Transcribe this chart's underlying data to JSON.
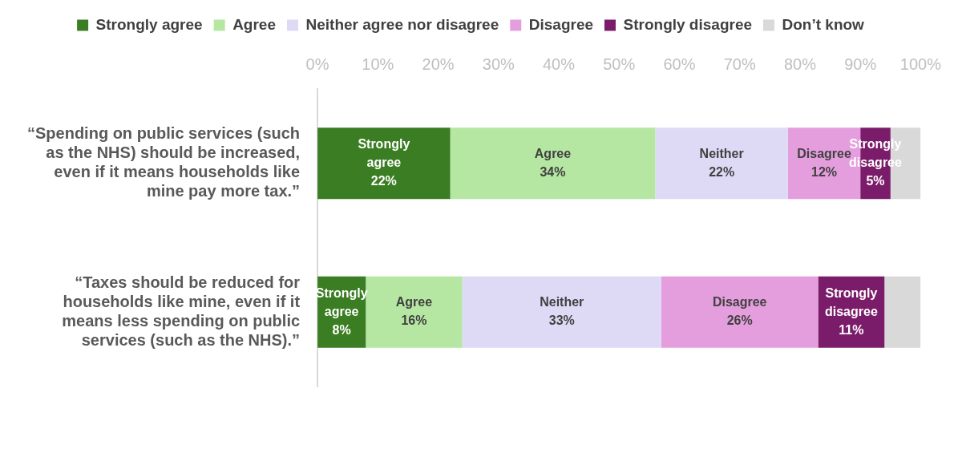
{
  "chart_data": {
    "type": "bar",
    "orientation": "horizontal",
    "stacked": true,
    "legend": "top",
    "categories": [
      "“Spending on public services (such as the NHS) should be increased, even if it means households like mine pay more tax.”",
      "“Taxes should be reduced for households like mine, even if it means less spending on public services (such as the NHS).”"
    ],
    "series": [
      {
        "name": "Strongly agree",
        "color": "#3a7d22",
        "values": [
          22,
          8
        ],
        "value_labels": [
          "Strongly agree 22%",
          "Strongly agree 8%"
        ]
      },
      {
        "name": "Agree",
        "color": "#b5e6a2",
        "values": [
          34,
          16
        ],
        "value_labels": [
          "Agree 34%",
          "Agree 16%"
        ]
      },
      {
        "name": "Neither agree nor disagree",
        "color": "#dedaf6",
        "values": [
          22,
          33
        ],
        "value_labels": [
          "Neither 22%",
          "Neither 33%"
        ]
      },
      {
        "name": "Disagree",
        "color": "#e59edd",
        "values": [
          12,
          26
        ],
        "value_labels": [
          "Disagree 12%",
          "Disagree 26%"
        ]
      },
      {
        "name": "Strongly disagree",
        "color": "#7b1c6a",
        "values": [
          5,
          11
        ],
        "value_labels": [
          "Strongly disagree 5%",
          "Strongly disagree 11%"
        ]
      },
      {
        "name": "Don’t know",
        "color": "#d9d9d9",
        "values": [
          5,
          6
        ],
        "value_labels": [
          null,
          null
        ]
      }
    ],
    "xlim": [
      0,
      100
    ],
    "xticks": [
      {
        "value": 0,
        "label": "0%"
      },
      {
        "value": 10,
        "label": "10%"
      },
      {
        "value": 20,
        "label": "20%"
      },
      {
        "value": 30,
        "label": "30%"
      },
      {
        "value": 40,
        "label": "40%"
      },
      {
        "value": 50,
        "label": "50%"
      },
      {
        "value": 60,
        "label": "60%"
      },
      {
        "value": 70,
        "label": "70%"
      },
      {
        "value": 80,
        "label": "80%"
      },
      {
        "value": 90,
        "label": "90%"
      },
      {
        "value": 100,
        "label": "100%"
      }
    ],
    "grid": false
  }
}
